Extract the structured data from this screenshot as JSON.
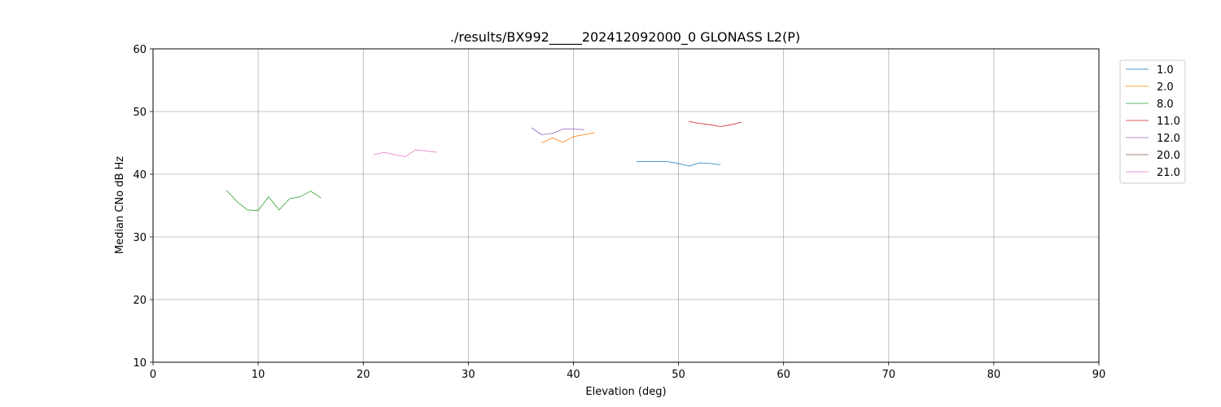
{
  "chart_data": {
    "type": "line",
    "title": "./results/BX992_____202412092000_0 GLONASS L2(P)",
    "xlabel": "Elevation (deg)",
    "ylabel": "Median CNo dB Hz",
    "xlim": [
      0,
      90
    ],
    "ylim": [
      10,
      60
    ],
    "xticks": [
      "0",
      "10",
      "20",
      "30",
      "40",
      "50",
      "60",
      "70",
      "80",
      "90"
    ],
    "yticks": [
      "10",
      "20",
      "30",
      "40",
      "50",
      "60"
    ],
    "grid": true,
    "legend_position": "outside-top-right",
    "series": [
      {
        "name": "1.0",
        "color": "#1f77b4",
        "x": [
          46,
          47,
          48,
          49,
          50,
          51,
          52,
          53,
          54
        ],
        "y": [
          42.0,
          42.0,
          42.0,
          42.0,
          41.7,
          41.3,
          41.8,
          41.7,
          41.5
        ]
      },
      {
        "name": "2.0",
        "color": "#ff7f0e",
        "x": [
          37,
          38,
          39,
          40,
          41,
          42
        ],
        "y": [
          45.0,
          45.8,
          45.1,
          46.0,
          46.3,
          46.6
        ]
      },
      {
        "name": "8.0",
        "color": "#2ca02c",
        "x": [
          7,
          8,
          9,
          10,
          11,
          12,
          13,
          14,
          15,
          16
        ],
        "y": [
          37.4,
          35.6,
          34.3,
          34.2,
          36.4,
          34.3,
          36.1,
          36.4,
          37.3,
          36.2
        ]
      },
      {
        "name": "11.0",
        "color": "#d62728",
        "x": [
          51,
          52,
          53,
          54,
          55,
          56
        ],
        "y": [
          48.4,
          48.1,
          47.9,
          47.6,
          47.9,
          48.3
        ]
      },
      {
        "name": "12.0",
        "color": "#9467bd",
        "x": [
          36,
          37,
          38,
          39,
          40,
          41
        ],
        "y": [
          47.4,
          46.3,
          46.5,
          47.2,
          47.2,
          47.1
        ]
      },
      {
        "name": "20.0",
        "color": "#8c564b",
        "x": [],
        "y": []
      },
      {
        "name": "21.0",
        "color": "#e377c2",
        "x": [
          21,
          22,
          23,
          24,
          25,
          26,
          27
        ],
        "y": [
          43.1,
          43.5,
          43.1,
          42.8,
          43.9,
          43.7,
          43.5
        ]
      }
    ]
  }
}
